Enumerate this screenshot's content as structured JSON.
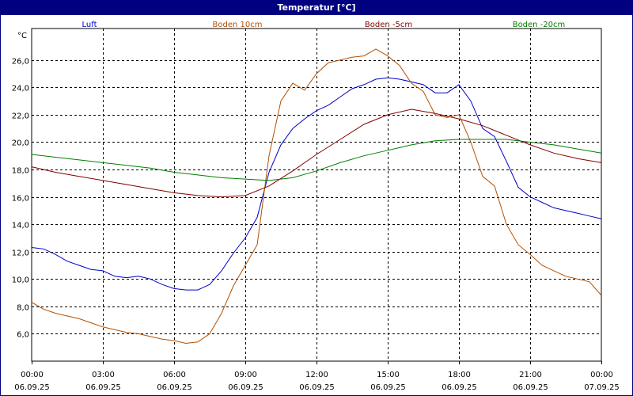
{
  "window": {
    "title": "Temperatur [°C]"
  },
  "chart_data": {
    "type": "line",
    "ylabel": "°C",
    "ylim": [
      4.0,
      28.3
    ],
    "yticks": [
      "6,0",
      "8,0",
      "10,0",
      "12,0",
      "14,0",
      "16,0",
      "18,0",
      "20,0",
      "22,0",
      "24,0",
      "26,0"
    ],
    "ytick_values": [
      6,
      8,
      10,
      12,
      14,
      16,
      18,
      20,
      22,
      24,
      26
    ],
    "xlim": [
      0,
      24
    ],
    "xticks": [
      {
        "time": "00:00",
        "date": "06.09.25",
        "hour": 0
      },
      {
        "time": "03:00",
        "date": "06.09.25",
        "hour": 3
      },
      {
        "time": "06:00",
        "date": "06.09.25",
        "hour": 6
      },
      {
        "time": "09:00",
        "date": "06.09.25",
        "hour": 9
      },
      {
        "time": "12:00",
        "date": "06.09.25",
        "hour": 12
      },
      {
        "time": "15:00",
        "date": "06.09.25",
        "hour": 15
      },
      {
        "time": "18:00",
        "date": "06.09.25",
        "hour": 18
      },
      {
        "time": "21:00",
        "date": "06.09.25",
        "hour": 21
      },
      {
        "time": "00:00",
        "date": "07.09.25",
        "hour": 24
      }
    ],
    "grid": true,
    "legend_position": "top",
    "series": [
      {
        "name": "Luft",
        "color": "#0000c8",
        "x": [
          0,
          0.5,
          1,
          1.5,
          2,
          2.5,
          3,
          3.5,
          4,
          4.5,
          5,
          5.5,
          6,
          6.5,
          7,
          7.5,
          8,
          8.5,
          9,
          9.5,
          10,
          10.5,
          11,
          11.5,
          12,
          12.5,
          13,
          13.5,
          14,
          14.5,
          15,
          15.5,
          16,
          16.5,
          17,
          17.5,
          18,
          18.5,
          19,
          19.5,
          20,
          20.5,
          21,
          21.5,
          22,
          22.5,
          23,
          23.5,
          24
        ],
        "values": [
          12.3,
          12.2,
          11.8,
          11.3,
          11.0,
          10.7,
          10.6,
          10.2,
          10.1,
          10.2,
          10.0,
          9.6,
          9.3,
          9.2,
          9.2,
          9.6,
          10.6,
          11.9,
          13.0,
          14.5,
          17.8,
          19.8,
          21.0,
          21.7,
          22.3,
          22.7,
          23.3,
          23.9,
          24.2,
          24.6,
          24.7,
          24.6,
          24.4,
          24.2,
          23.6,
          23.6,
          24.2,
          23.0,
          21.0,
          20.4,
          18.6,
          16.7,
          16.0,
          15.6,
          15.2,
          15.0,
          14.8,
          14.6,
          14.4
        ]
      },
      {
        "name": "Boden 10cm",
        "color": "#b45000",
        "x": [
          0,
          0.5,
          1,
          1.5,
          2,
          2.5,
          3,
          3.5,
          4,
          4.5,
          5,
          5.5,
          6,
          6.5,
          7,
          7.5,
          8,
          8.5,
          9,
          9.5,
          10,
          10.5,
          11,
          11.5,
          12,
          12.5,
          13,
          13.5,
          14,
          14.5,
          15,
          15.5,
          16,
          16.5,
          17,
          17.5,
          18,
          18.5,
          19,
          19.5,
          20,
          20.5,
          21,
          21.5,
          22,
          22.5,
          23,
          23.5,
          24
        ],
        "values": [
          8.3,
          7.8,
          7.5,
          7.3,
          7.1,
          6.8,
          6.5,
          6.3,
          6.1,
          6.0,
          5.8,
          5.6,
          5.5,
          5.3,
          5.4,
          6.0,
          7.5,
          9.5,
          11.0,
          12.5,
          19.0,
          23.0,
          24.3,
          23.8,
          25.0,
          25.8,
          26.0,
          26.2,
          26.3,
          26.8,
          26.3,
          25.6,
          24.3,
          23.7,
          22.0,
          21.8,
          22.0,
          20.0,
          17.5,
          16.8,
          14.0,
          12.5,
          11.8,
          11.0,
          10.6,
          10.2,
          10.0,
          9.8,
          8.8
        ]
      },
      {
        "name": "Boden -5cm",
        "color": "#800000",
        "x": [
          0,
          1,
          2,
          3,
          4,
          5,
          6,
          7,
          8,
          9,
          10,
          11,
          12,
          13,
          14,
          15,
          16,
          17,
          18,
          19,
          20,
          21,
          22,
          23,
          24
        ],
        "values": [
          18.2,
          17.8,
          17.5,
          17.2,
          16.9,
          16.6,
          16.3,
          16.1,
          16.0,
          16.1,
          16.8,
          17.9,
          19.1,
          20.2,
          21.3,
          22.0,
          22.4,
          22.1,
          21.7,
          21.2,
          20.5,
          19.8,
          19.2,
          18.8,
          18.5
        ]
      },
      {
        "name": "Boden -20cm",
        "color": "#008000",
        "x": [
          0,
          1,
          2,
          3,
          4,
          5,
          6,
          7,
          8,
          9,
          10,
          11,
          12,
          13,
          14,
          15,
          16,
          17,
          18,
          19,
          20,
          21,
          22,
          23,
          24
        ],
        "values": [
          19.1,
          18.9,
          18.7,
          18.5,
          18.3,
          18.1,
          17.8,
          17.6,
          17.4,
          17.3,
          17.2,
          17.4,
          17.9,
          18.5,
          19.0,
          19.4,
          19.8,
          20.1,
          20.2,
          20.2,
          20.2,
          20.0,
          19.8,
          19.5,
          19.2
        ]
      }
    ]
  }
}
